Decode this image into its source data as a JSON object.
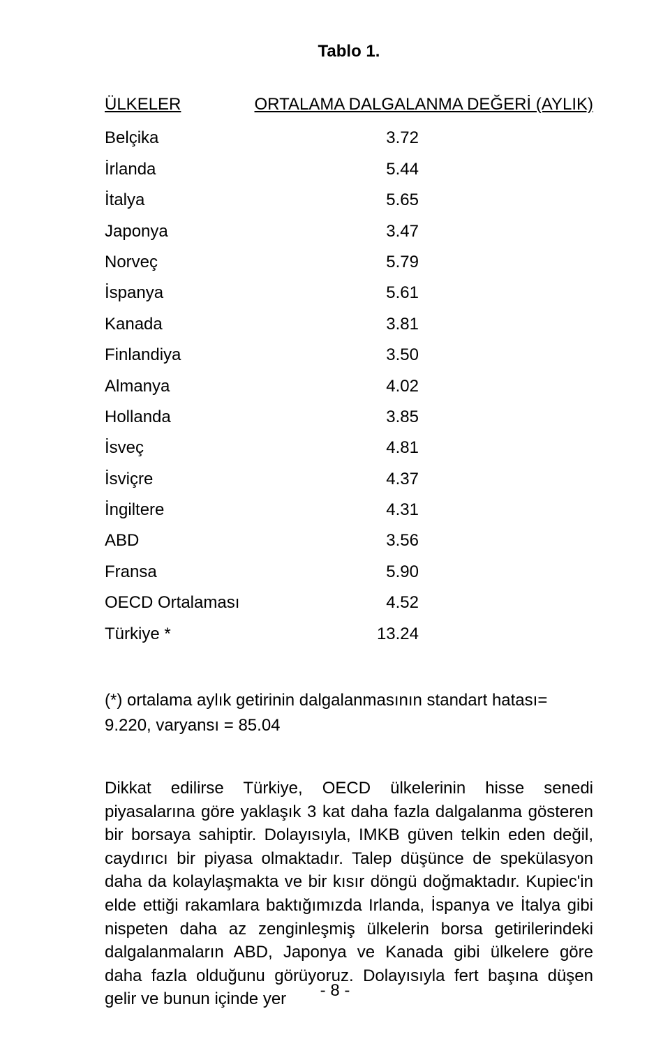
{
  "title": "Tablo 1.",
  "table": {
    "header_left": "ÜLKELER",
    "header_right": "ORTALAMA DALGALANMA DEĞERİ (AYLIK)",
    "rows": [
      {
        "country": "Belçika",
        "value": "3.72"
      },
      {
        "country": "İrlanda",
        "value": "5.44"
      },
      {
        "country": "İtalya",
        "value": "5.65"
      },
      {
        "country": "Japonya",
        "value": "3.47"
      },
      {
        "country": "Norveç",
        "value": "5.79"
      },
      {
        "country": "İspanya",
        "value": "5.61"
      },
      {
        "country": "Kanada",
        "value": "3.81"
      },
      {
        "country": "Finlandiya",
        "value": "3.50"
      },
      {
        "country": "Almanya",
        "value": "4.02"
      },
      {
        "country": "Hollanda",
        "value": "3.85"
      },
      {
        "country": "İsveç",
        "value": "4.81"
      },
      {
        "country": "İsviçre",
        "value": "4.37"
      },
      {
        "country": "İngiltere",
        "value": "4.31"
      },
      {
        "country": "ABD",
        "value": "3.56"
      },
      {
        "country": "Fransa",
        "value": "5.90"
      },
      {
        "country": "OECD Ortalaması",
        "value": "4.52"
      },
      {
        "country": "Türkiye *",
        "value": "13.24"
      }
    ]
  },
  "footnote": "(*)   ortalama aylık getirinin dalgalanmasının standart hatası= 9.220, varyansı = 85.04",
  "paragraph": "Dikkat edilirse Türkiye, OECD ülkelerinin hisse senedi piyasalarına göre yaklaşık 3 kat daha fazla dalgalanma gösteren bir borsaya sahiptir. Dolayısıyla, IMKB güven telkin eden değil, caydırıcı bir piyasa olmaktadır. Talep düşünce de spekülasyon daha da kolaylaşmakta ve bir kısır döngü doğmaktadır. Kupiec'in elde ettiği rakamlara baktığımızda Irlanda, İspanya ve İtalya gibi nispeten daha az zenginleşmiş ülkelerin borsa getirilerindeki dalgalanmaların ABD, Japonya ve Kanada gibi ülkelere göre daha fazla olduğunu görüyoruz. Dolayısıyla fert başına düşen gelir ve bunun içinde yer",
  "page_number": "- 8 -"
}
